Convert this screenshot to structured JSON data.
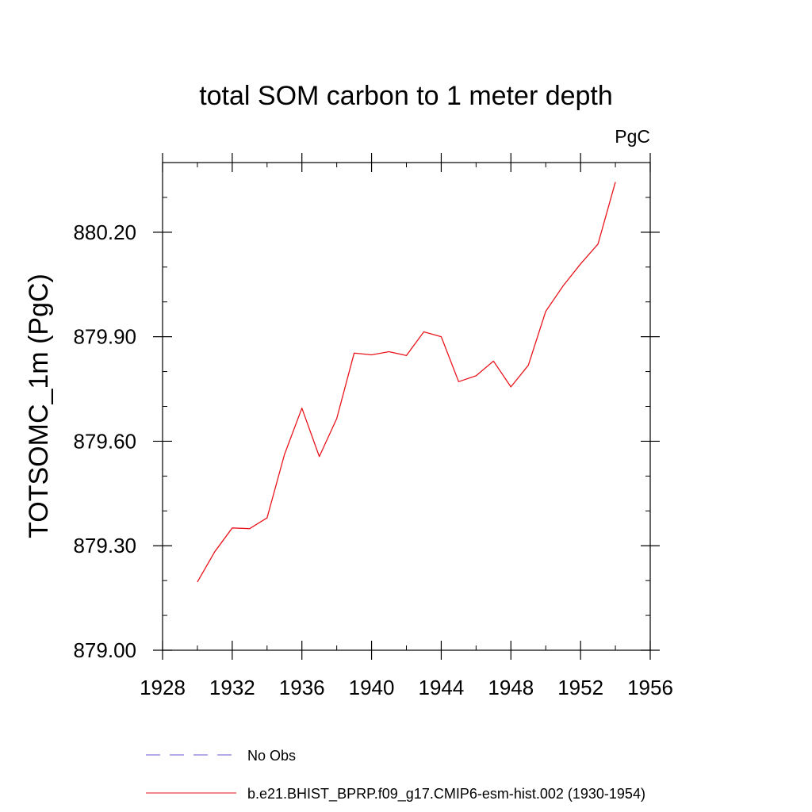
{
  "chart_data": {
    "type": "line",
    "title": "total SOM carbon to 1 meter depth",
    "units_label": "PgC",
    "xlabel": "",
    "ylabel": "TOTSOMC_1m  (PgC)",
    "xlim": [
      1928,
      1956
    ],
    "ylim": [
      879.0,
      880.4
    ],
    "x_ticks": [
      1928,
      1932,
      1936,
      1940,
      1944,
      1948,
      1952,
      1956
    ],
    "x_tick_labels": [
      "1928",
      "1932",
      "1936",
      "1940",
      "1944",
      "1948",
      "1952",
      "1956"
    ],
    "x_minor_step": 2,
    "y_ticks": [
      879.0,
      879.3,
      879.6,
      879.9,
      880.2
    ],
    "y_tick_labels": [
      "879.00",
      "879.30",
      "879.60",
      "879.90",
      "880.20"
    ],
    "y_minor_step": 0.1,
    "grid": false,
    "series": [
      {
        "name": "b.e21.BHIST_BPRP.f09_g17.CMIP6-esm-hist.002 (1930-1954)",
        "color": "#e8141c",
        "dash": "solid",
        "x": [
          1930,
          1931,
          1932,
          1933,
          1934,
          1935,
          1936,
          1937,
          1938,
          1939,
          1940,
          1941,
          1942,
          1943,
          1944,
          1945,
          1946,
          1947,
          1948,
          1949,
          1950,
          1951,
          1952,
          1953,
          1954
        ],
        "values": [
          879.196,
          879.283,
          879.351,
          879.349,
          879.38,
          879.562,
          879.695,
          879.556,
          879.665,
          879.853,
          879.848,
          879.857,
          879.846,
          879.914,
          879.9,
          879.771,
          879.788,
          879.83,
          879.756,
          879.818,
          879.973,
          880.046,
          880.109,
          880.166,
          880.344
        ]
      }
    ],
    "legend": {
      "placement": "bottom-left",
      "entries": [
        {
          "label": "No Obs",
          "color": "#6a5acd",
          "dash": "dashed"
        },
        {
          "label": "b.e21.BHIST_BPRP.f09_g17.CMIP6-esm-hist.002 (1930-1954)",
          "color": "#e8141c",
          "dash": "solid"
        }
      ]
    }
  }
}
